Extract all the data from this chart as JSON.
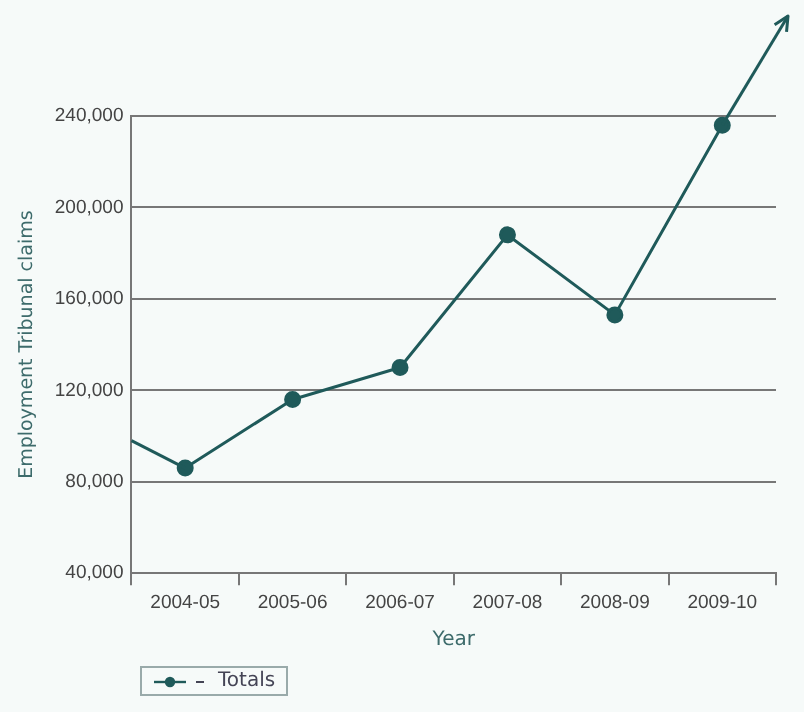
{
  "chart_data": {
    "type": "line",
    "xlabel": "Year",
    "ylabel": "Employment Tribunal claims",
    "categories": [
      "2004-05",
      "2005-06",
      "2006-07",
      "2007-08",
      "2008-09",
      "2009-10"
    ],
    "series": [
      {
        "name": "Totals",
        "color": "#1f5a5a",
        "values": [
          86000,
          116000,
          130000,
          188000,
          153000,
          236000
        ]
      }
    ],
    "ylim": [
      40000,
      240000
    ],
    "yticks": [
      {
        "value": 40000,
        "label": "40,000"
      },
      {
        "value": 80000,
        "label": "80,000"
      },
      {
        "value": 120000,
        "label": "120,000"
      },
      {
        "value": 160000,
        "label": "160,000"
      },
      {
        "value": 200000,
        "label": "200,000"
      },
      {
        "value": 240000,
        "label": "240,000"
      }
    ],
    "grid": "y",
    "legend": "bottom left",
    "marker": "circle",
    "line_style": "solid"
  }
}
